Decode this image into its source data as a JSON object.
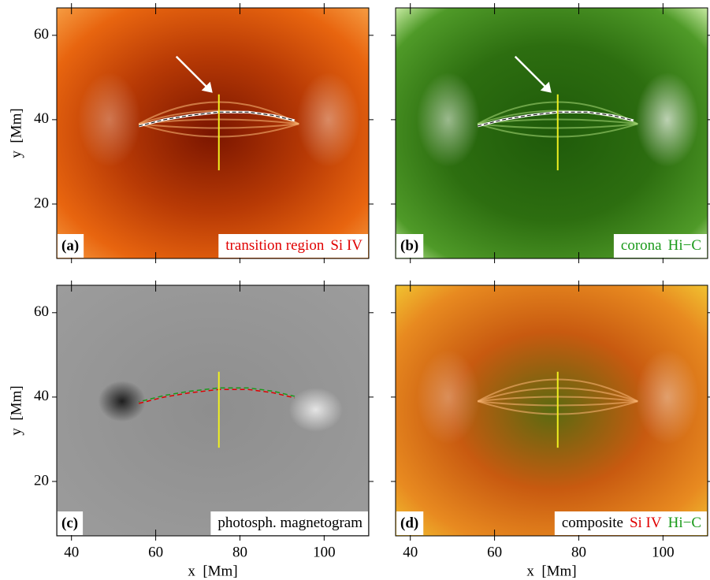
{
  "figure": {
    "xlabel": "x  [Mm]",
    "ylabel": "y  [Mm]",
    "xlim": [
      36.5,
      110.6
    ],
    "ylim": [
      7.1,
      66.5
    ],
    "xticks": [
      40,
      60,
      80,
      100
    ],
    "yticks": [
      20,
      40,
      60
    ],
    "cut": {
      "x": 75,
      "y": [
        28,
        46
      ],
      "color": "#f0f020"
    },
    "loop": {
      "x": [
        56,
        62,
        68,
        75,
        82,
        88,
        93
      ],
      "y": [
        38.5,
        40.0,
        41.0,
        41.8,
        41.8,
        41.0,
        39.8
      ]
    },
    "panels": [
      {
        "label": "(a)",
        "caption": [
          {
            "text": "transition region",
            "color": "#e00000"
          },
          {
            "text": "Si IV",
            "color": "#e00000"
          }
        ]
      },
      {
        "label": "(b)",
        "caption": [
          {
            "text": "corona",
            "color": "#1a9a1a"
          },
          {
            "text": "Hi−C",
            "color": "#1a9a1a"
          }
        ]
      },
      {
        "label": "(c)",
        "caption": [
          {
            "text": "photosph. magnetogram",
            "color": "#000000"
          }
        ]
      },
      {
        "label": "(d)",
        "caption": [
          {
            "text": "composite",
            "color": "#000000"
          },
          {
            "text": "Si IV",
            "color": "#e00000"
          },
          {
            "text": "Hi−C",
            "color": "#1a9a1a"
          }
        ]
      }
    ]
  }
}
